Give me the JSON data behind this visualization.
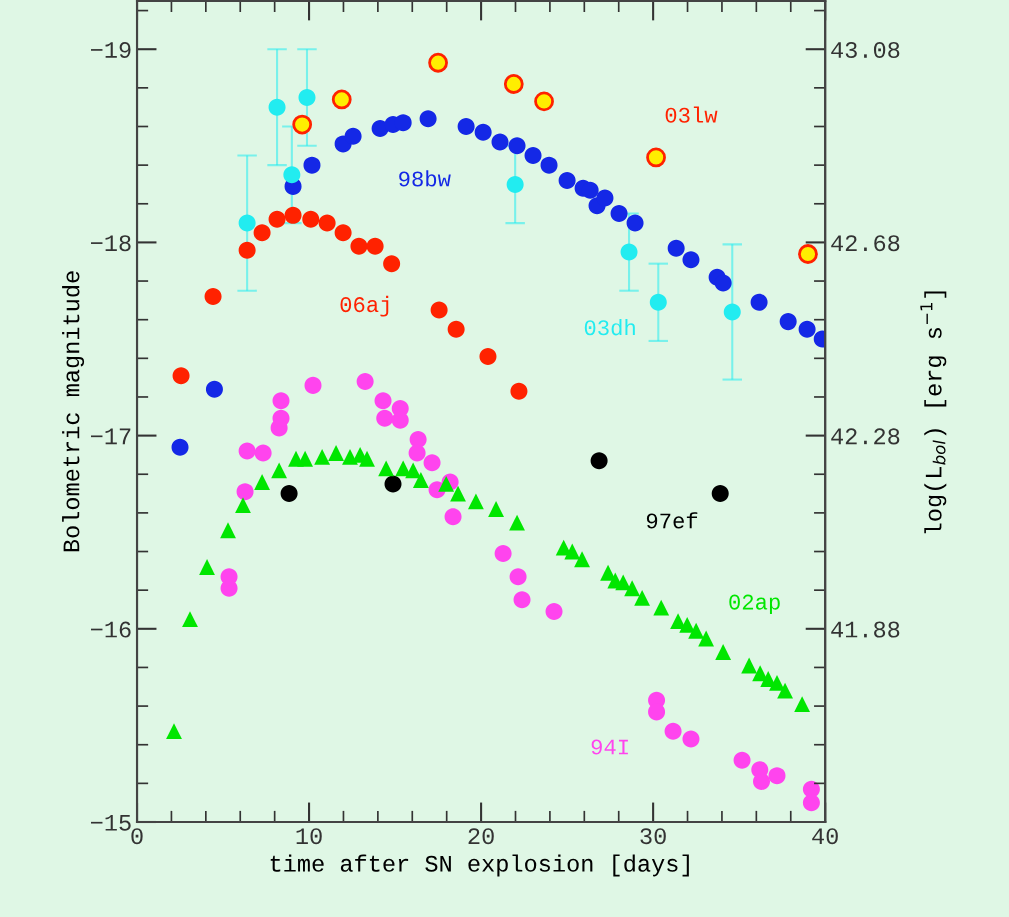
{
  "chart_data": {
    "type": "scatter",
    "xlabel": "time after SN explosion [days]",
    "ylabel": "Bolometric magnitude",
    "y2label": "log(L$_{bol}$) [erg s$^{−1}$]",
    "xlim": [
      0,
      40
    ],
    "xticks": [
      0,
      10,
      20,
      30,
      40
    ],
    "ylim": [
      -15,
      -19.25
    ],
    "yticks": [
      {
        "value": -15,
        "label": "−15"
      },
      {
        "value": -16,
        "label": "−16"
      },
      {
        "value": -17,
        "label": "−17"
      },
      {
        "value": -18,
        "label": "−18"
      },
      {
        "value": -19,
        "label": "−19"
      }
    ],
    "y2lim": [
      41.48,
      43.18
    ],
    "y2ticks": [
      41.88,
      42.28,
      42.68,
      43.08
    ],
    "grid": false,
    "legend": false,
    "series": [
      {
        "name": "98bw",
        "color": "#1428e6",
        "marker": "circle",
        "x": [
          2.5,
          4.5,
          9.07,
          10.17,
          11.98,
          12.56,
          14.13,
          14.88,
          15.47,
          16.92,
          19.13,
          20.12,
          21.1,
          22.09,
          23.02,
          23.95,
          25.0,
          25.93,
          26.34,
          26.74,
          27.2,
          28.02,
          28.95,
          31.34,
          32.2,
          33.72,
          34.07,
          36.16,
          37.85,
          38.95,
          39.83
        ],
        "values": [
          -16.94,
          -17.24,
          -18.29,
          -18.4,
          -18.51,
          -18.55,
          -18.59,
          -18.61,
          -18.62,
          -18.64,
          -18.6,
          -18.57,
          -18.52,
          -18.5,
          -18.45,
          -18.4,
          -18.32,
          -18.28,
          -18.27,
          -18.19,
          -18.23,
          -18.15,
          -18.1,
          -17.97,
          -17.91,
          -17.82,
          -17.79,
          -17.69,
          -17.59,
          -17.55,
          -17.5
        ]
      },
      {
        "name": "06aj",
        "color": "#ff2200",
        "marker": "circle",
        "x": [
          2.56,
          4.42,
          6.4,
          7.27,
          8.14,
          9.07,
          10.1,
          11.05,
          11.98,
          12.9,
          13.84,
          14.8,
          17.56,
          18.55,
          20.4,
          22.2
        ],
        "values": [
          -17.31,
          -17.72,
          -17.96,
          -18.05,
          -18.12,
          -18.14,
          -18.12,
          -18.1,
          -18.05,
          -17.98,
          -17.98,
          -17.89,
          -17.65,
          -17.55,
          -17.41,
          -17.23
        ]
      },
      {
        "name": "03dh",
        "color": "#22ecf0",
        "marker": "circle",
        "x": [
          6.4,
          8.14,
          9.0,
          9.88,
          21.98,
          28.6,
          30.3,
          34.6
        ],
        "values": [
          -18.1,
          -18.7,
          -18.35,
          -18.75,
          -18.3,
          -17.95,
          -17.69,
          -17.64
        ],
        "errors": [
          0.35,
          0.3,
          0.25,
          0.25,
          0.2,
          0.2,
          0.2,
          0.35
        ]
      },
      {
        "name": "03lw",
        "color": "#ffee00",
        "marker": "circle",
        "x": [
          9.6,
          11.9,
          17.5,
          21.9,
          23.66,
          30.17,
          39.0
        ],
        "values": [
          -18.61,
          -18.74,
          -18.93,
          -18.82,
          -18.73,
          -18.44,
          -17.94
        ]
      },
      {
        "name": "97ef",
        "color": "#000000",
        "marker": "circle",
        "x": [
          8.84,
          14.88,
          26.86,
          33.9
        ],
        "values": [
          -16.7,
          -16.75,
          -16.87,
          -16.7
        ]
      },
      {
        "name": "02ap",
        "color": "#00e600",
        "marker": "triangle",
        "x": [
          2.15,
          3.08,
          4.07,
          5.29,
          6.16,
          7.27,
          8.26,
          9.24,
          9.77,
          10.76,
          11.57,
          12.38,
          12.97,
          13.37,
          14.48,
          15.47,
          16.05,
          16.5,
          17.97,
          18.66,
          19.7,
          20.87,
          22.09,
          24.8,
          25.3,
          25.87,
          27.38,
          27.8,
          28.26,
          28.78,
          29.36,
          30.47,
          31.45,
          31.98,
          32.5,
          33.08,
          34.07,
          35.58,
          36.22,
          36.69,
          37.2,
          37.67,
          38.66
        ],
        "values": [
          -15.47,
          -16.05,
          -16.32,
          -16.51,
          -16.64,
          -16.76,
          -16.82,
          -16.88,
          -16.88,
          -16.89,
          -16.91,
          -16.89,
          -16.9,
          -16.88,
          -16.83,
          -16.83,
          -16.82,
          -16.77,
          -16.75,
          -16.7,
          -16.66,
          -16.62,
          -16.55,
          -16.42,
          -16.4,
          -16.36,
          -16.29,
          -16.25,
          -16.24,
          -16.21,
          -16.16,
          -16.11,
          -16.04,
          -16.02,
          -15.99,
          -15.95,
          -15.88,
          -15.81,
          -15.77,
          -15.74,
          -15.72,
          -15.68,
          -15.61
        ]
      },
      {
        "name": "94I",
        "color": "#ff44ee",
        "marker": "circle",
        "x": [
          5.35,
          5.35,
          6.28,
          6.4,
          7.33,
          8.26,
          8.37,
          8.37,
          10.23,
          13.26,
          14.3,
          14.4,
          15.3,
          15.3,
          16.34,
          16.28,
          17.15,
          17.44,
          18.2,
          18.37,
          21.28,
          22.15,
          22.38,
          24.24,
          30.2,
          30.2,
          31.16,
          32.2,
          35.17,
          36.2,
          36.3,
          37.2,
          39.2,
          39.2
        ],
        "values": [
          -16.21,
          -16.27,
          -16.71,
          -16.92,
          -16.91,
          -17.04,
          -17.09,
          -17.18,
          -17.26,
          -17.28,
          -17.18,
          -17.09,
          -17.14,
          -17.08,
          -16.98,
          -16.91,
          -16.86,
          -16.72,
          -16.76,
          -16.58,
          -16.39,
          -16.27,
          -16.15,
          -16.09,
          -15.63,
          -15.57,
          -15.47,
          -15.43,
          -15.32,
          -15.27,
          -15.21,
          -15.24,
          -15.17,
          -15.1
        ]
      }
    ]
  }
}
